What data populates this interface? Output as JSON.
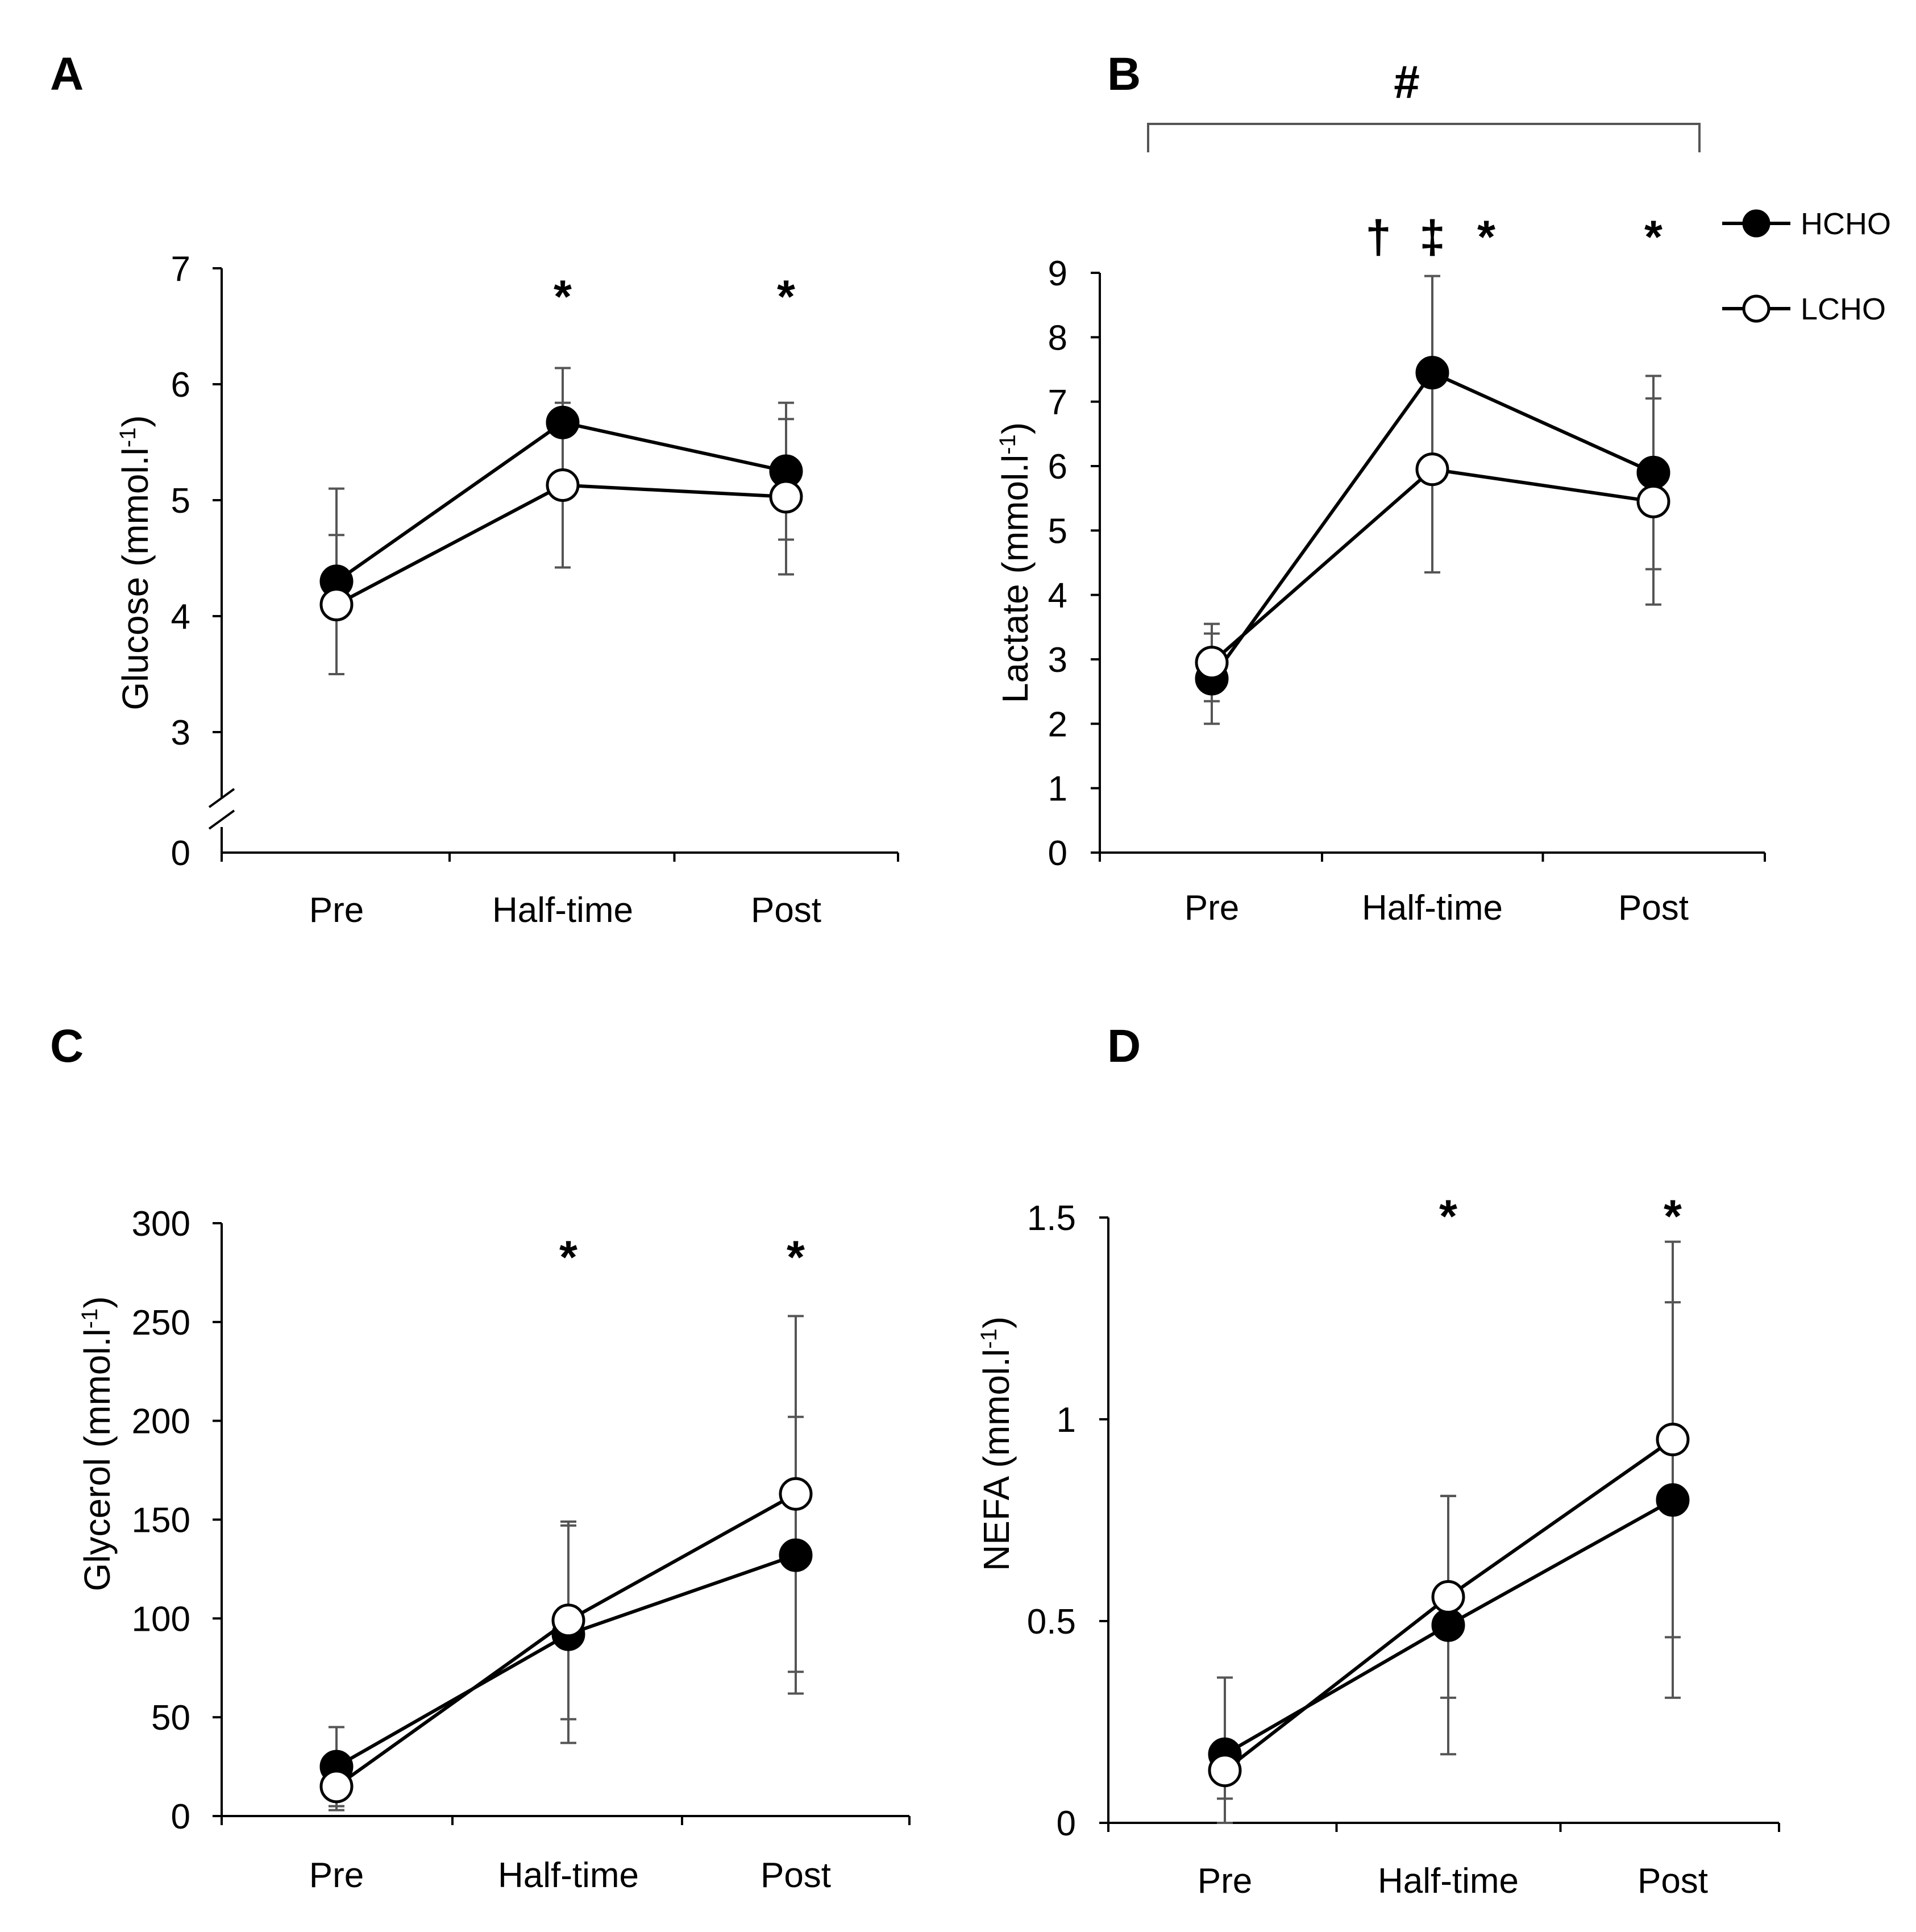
{
  "legend": [
    {
      "label": "HCHO",
      "marker": "filled-circle"
    },
    {
      "label": "LCHO",
      "marker": "open-circle"
    }
  ],
  "colors": {
    "line": "#000000",
    "error_bar": "#555555",
    "hcho_fill": "#000000",
    "lcho_fill": "#ffffff"
  },
  "chart_data": [
    {
      "panel": "A",
      "type": "line",
      "ylabel": "Glucose (mmol.l",
      "ylabel_superscript": "-1",
      "ylabel_suffix": ")",
      "categories": [
        "Pre",
        "Half-time",
        "Post"
      ],
      "ylim": [
        3,
        7
      ],
      "yticks": [
        3,
        4,
        5,
        6,
        7
      ],
      "axis_break": true,
      "axis_break_label": "0",
      "series": [
        {
          "name": "HCHO",
          "values": [
            4.3,
            5.67,
            5.25
          ],
          "errors": [
            0.8,
            0.47,
            0.59
          ]
        },
        {
          "name": "LCHO",
          "values": [
            4.1,
            5.13,
            5.03
          ],
          "errors": [
            0.6,
            0.71,
            0.67
          ]
        }
      ],
      "significance": [
        {
          "category": "Half-time",
          "symbol": "*"
        },
        {
          "category": "Post",
          "symbol": "*"
        }
      ]
    },
    {
      "panel": "B",
      "type": "line",
      "ylabel": "Lactate (mmol.l",
      "ylabel_superscript": "-1",
      "ylabel_suffix": ")",
      "categories": [
        "Pre",
        "Half-time",
        "Post"
      ],
      "ylim": [
        0,
        9
      ],
      "yticks": [
        0,
        1,
        2,
        3,
        4,
        5,
        6,
        7,
        8,
        9
      ],
      "series": [
        {
          "name": "HCHO",
          "values": [
            2.7,
            7.45,
            5.9
          ],
          "errors": [
            0.7,
            1.5,
            1.5
          ]
        },
        {
          "name": "LCHO",
          "values": [
            2.95,
            5.95,
            5.45
          ],
          "errors": [
            0.6,
            1.6,
            1.6
          ]
        }
      ],
      "significance": [
        {
          "category": "Half-time",
          "symbol": "†",
          "offset": -1
        },
        {
          "category": "Half-time",
          "symbol": "‡",
          "offset": 0
        },
        {
          "category": "Half-time",
          "symbol": "*",
          "offset": 1
        },
        {
          "category": "Post",
          "symbol": "*",
          "offset": 0
        }
      ],
      "bracket_symbol": "#"
    },
    {
      "panel": "C",
      "type": "line",
      "ylabel": "Glycerol (mmol.l",
      "ylabel_superscript": "-1",
      "ylabel_suffix": ")",
      "categories": [
        "Pre",
        "Half-time",
        "Post"
      ],
      "ylim": [
        0,
        300
      ],
      "yticks": [
        0,
        50,
        100,
        150,
        200,
        250,
        300
      ],
      "series": [
        {
          "name": "HCHO",
          "values": [
            25,
            92,
            132
          ],
          "errors": [
            20,
            55,
            70
          ]
        },
        {
          "name": "LCHO",
          "values": [
            15,
            99,
            163
          ],
          "errors": [
            12,
            50,
            90
          ]
        }
      ],
      "significance": [
        {
          "category": "Half-time",
          "symbol": "*"
        },
        {
          "category": "Post",
          "symbol": "*"
        }
      ]
    },
    {
      "panel": "D",
      "type": "line",
      "ylabel": "NEFA (mmol.l",
      "ylabel_superscript": "-1",
      "ylabel_suffix": ")",
      "categories": [
        "Pre",
        "Half-time",
        "Post"
      ],
      "ylim": [
        0,
        1.5
      ],
      "yticks": [
        0,
        0.5,
        1,
        1.5
      ],
      "series": [
        {
          "name": "HCHO",
          "values": [
            0.17,
            0.49,
            0.8
          ],
          "errors": [
            0.19,
            0.32,
            0.49
          ]
        },
        {
          "name": "LCHO",
          "values": [
            0.13,
            0.56,
            0.95
          ],
          "errors": [
            0.07,
            0.25,
            0.49
          ]
        }
      ],
      "significance": [
        {
          "category": "Half-time",
          "symbol": "*"
        },
        {
          "category": "Post",
          "symbol": "*"
        }
      ]
    }
  ]
}
